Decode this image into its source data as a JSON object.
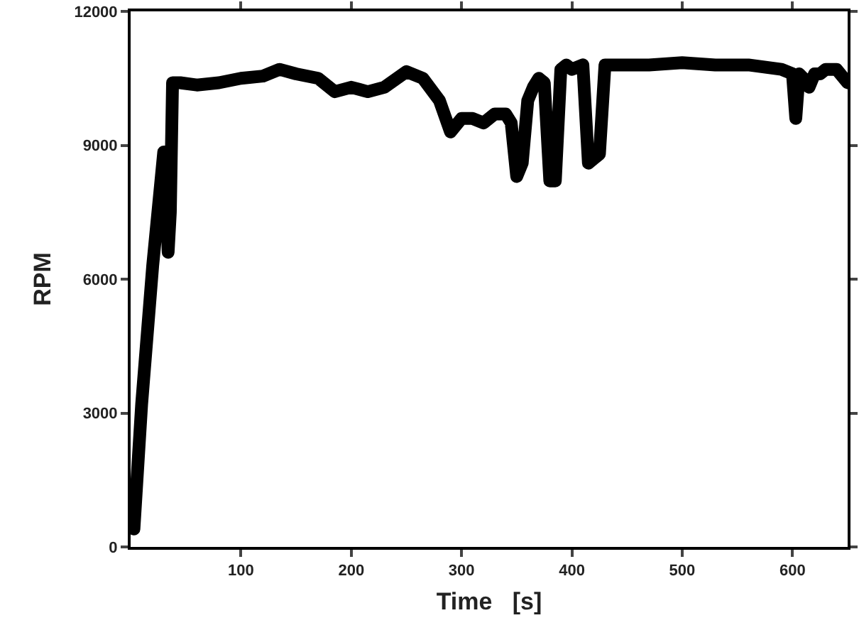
{
  "chart_data": {
    "type": "line",
    "xlabel": "Time   [s]",
    "ylabel": "RPM",
    "xlim": [
      0,
      650
    ],
    "ylim": [
      0,
      12000
    ],
    "xticks": [
      100,
      200,
      300,
      400,
      500,
      600
    ],
    "yticks": [
      0,
      3000,
      6000,
      9000,
      12000
    ],
    "grid": false,
    "line_style": "solid",
    "series": [
      {
        "color": "#000000",
        "x": [
          3,
          10,
          20,
          30,
          32,
          34,
          36,
          38,
          45,
          60,
          80,
          100,
          120,
          135,
          150,
          170,
          185,
          200,
          215,
          230,
          250,
          265,
          280,
          290,
          300,
          310,
          320,
          330,
          340,
          345,
          350,
          355,
          360,
          365,
          370,
          375,
          380,
          385,
          390,
          395,
          400,
          410,
          415,
          420,
          425,
          430,
          435,
          450,
          470,
          500,
          530,
          560,
          590,
          600,
          603,
          606,
          610,
          615,
          620,
          625,
          630,
          640,
          650
        ],
        "values": [
          400,
          3200,
          6300,
          8850,
          8200,
          6600,
          7500,
          10400,
          10400,
          10350,
          10400,
          10500,
          10550,
          10700,
          10600,
          10500,
          10200,
          10300,
          10200,
          10300,
          10650,
          10500,
          10000,
          9300,
          9600,
          9600,
          9500,
          9700,
          9700,
          9500,
          8300,
          8600,
          10000,
          10300,
          10500,
          10400,
          8200,
          8200,
          10700,
          10800,
          10700,
          10800,
          8600,
          8700,
          8800,
          10800,
          10800,
          10800,
          10800,
          10850,
          10800,
          10800,
          10700,
          10600,
          9600,
          10600,
          10500,
          10300,
          10600,
          10600,
          10700,
          10700,
          10400
        ]
      }
    ]
  }
}
